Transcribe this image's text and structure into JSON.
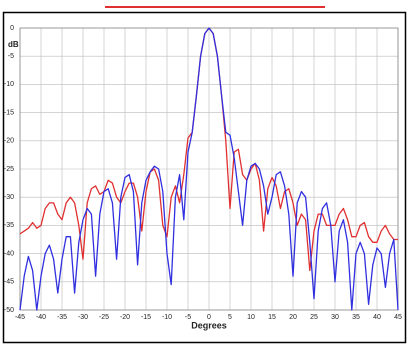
{
  "chart_data": {
    "type": "line",
    "y_label": "dB",
    "x_label": "Degrees",
    "x": [
      -45,
      -44,
      -43,
      -42,
      -41,
      -40,
      -39,
      -38,
      -37,
      -36,
      -35,
      -34,
      -33,
      -32,
      -31,
      -30,
      -29,
      -28,
      -27,
      -26,
      -25,
      -24,
      -23,
      -22,
      -21,
      -20,
      -19,
      -18,
      -17,
      -16,
      -15,
      -14,
      -13,
      -12,
      -11,
      -10,
      -9,
      -8,
      -7,
      -6,
      -5,
      -4,
      -3,
      -2,
      -1,
      0,
      1,
      2,
      3,
      4,
      5,
      6,
      7,
      8,
      9,
      10,
      11,
      12,
      13,
      14,
      15,
      16,
      17,
      18,
      19,
      20,
      21,
      22,
      23,
      24,
      25,
      26,
      27,
      28,
      29,
      30,
      31,
      32,
      33,
      34,
      35,
      36,
      37,
      38,
      39,
      40,
      41,
      42,
      43,
      44,
      45
    ],
    "series": [
      {
        "color": "#e03030",
        "values": [
          -36.5,
          -36,
          -35.5,
          -34.5,
          -35.5,
          -35,
          -32,
          -31,
          -31,
          -33,
          -34,
          -31,
          -30,
          -31,
          -35,
          -41,
          -31,
          -28.5,
          -28,
          -29.5,
          -29,
          -27,
          -27.5,
          -30,
          -31,
          -29,
          -27.5,
          -27.5,
          -30,
          -36,
          -29,
          -25.5,
          -25,
          -27,
          -35,
          -37,
          -30,
          -28,
          -31,
          -26,
          -19.5,
          -18.5,
          -12,
          -5,
          -1,
          0,
          -1,
          -5,
          -12,
          -20,
          -32,
          -22,
          -21.5,
          -26,
          -27,
          -25,
          -24,
          -27,
          -36,
          -28.5,
          -26.5,
          -28,
          -32,
          -29,
          -28.5,
          -31,
          -35,
          -33,
          -34,
          -43,
          -36,
          -33,
          -33,
          -35,
          -35,
          -35,
          -33,
          -32,
          -34,
          -37,
          -37,
          -35,
          -34.5,
          -37,
          -38,
          -38,
          -36,
          -35,
          -36.5,
          -37.5,
          -37.5
        ]
      },
      {
        "color": "#3030e0",
        "values": [
          -50,
          -44,
          -40.5,
          -43,
          -50,
          -44,
          -40,
          -38.5,
          -41,
          -47,
          -41,
          -37,
          -37,
          -47,
          -38,
          -34,
          -32,
          -33,
          -44,
          -33,
          -29,
          -28.5,
          -31,
          -41,
          -30,
          -26.5,
          -26,
          -29,
          -42,
          -31,
          -27,
          -25.5,
          -24.5,
          -25,
          -29,
          -40,
          -45.5,
          -30,
          -26,
          -34,
          -22,
          -18.5,
          -12,
          -5,
          -1,
          0,
          -1,
          -5,
          -12,
          -18.5,
          -19,
          -23,
          -29,
          -35,
          -27,
          -24.5,
          -24,
          -25,
          -28,
          -33,
          -30,
          -26,
          -25.5,
          -28,
          -33,
          -44,
          -31,
          -29,
          -30,
          -38,
          -48,
          -36,
          -32,
          -31,
          -35,
          -45,
          -36,
          -34,
          -38,
          -50,
          -40,
          -38,
          -40,
          -49,
          -42,
          -39,
          -40,
          -46,
          -40,
          -37.5,
          -50
        ]
      }
    ],
    "xlim": [
      -45,
      45
    ],
    "ylim": [
      -50,
      0
    ],
    "xticks": [
      -45,
      -40,
      -35,
      -30,
      -25,
      -20,
      -15,
      -10,
      -5,
      0,
      5,
      10,
      15,
      20,
      25,
      30,
      35,
      40,
      45
    ],
    "yticks": [
      0,
      -5,
      -10,
      -15,
      -20,
      -25,
      -30,
      -35,
      -40,
      -45,
      -50
    ],
    "grid": true
  }
}
